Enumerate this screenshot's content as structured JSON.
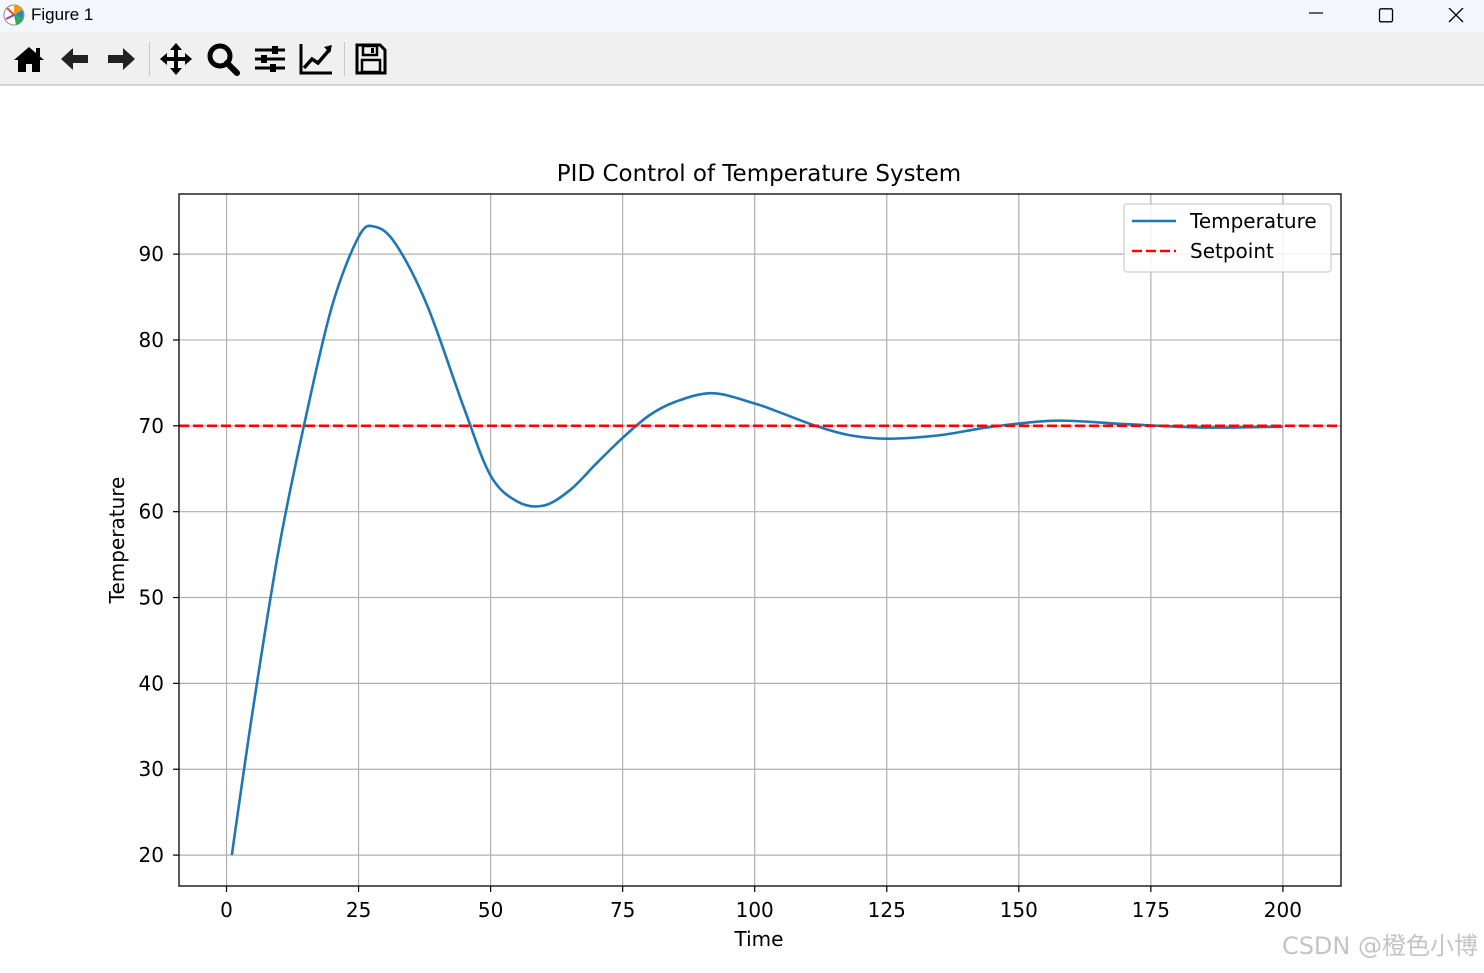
{
  "window": {
    "title": "Figure 1",
    "controls": [
      "minimize",
      "maximize",
      "close"
    ]
  },
  "toolbar": {
    "buttons": [
      {
        "name": "home",
        "icon": "home-icon"
      },
      {
        "name": "back",
        "icon": "arrow-left-icon"
      },
      {
        "name": "forward",
        "icon": "arrow-right-icon"
      },
      {
        "name": "pan",
        "icon": "move-icon"
      },
      {
        "name": "zoom",
        "icon": "magnifier-icon"
      },
      {
        "name": "configure-subplots",
        "icon": "sliders-icon"
      },
      {
        "name": "edit-axis",
        "icon": "chart-edit-icon"
      },
      {
        "name": "save",
        "icon": "floppy-disk-icon"
      }
    ]
  },
  "chart_data": {
    "type": "line",
    "title": "PID Control of Temperature System",
    "xlabel": "Time",
    "ylabel": "Temperature",
    "xlim": [
      -9,
      211
    ],
    "ylim": [
      16.4,
      97
    ],
    "xticks": [
      0,
      25,
      50,
      75,
      100,
      125,
      150,
      175,
      200
    ],
    "yticks": [
      20,
      30,
      40,
      50,
      60,
      70,
      80,
      90
    ],
    "grid": true,
    "legend": {
      "position": "top-right",
      "entries": [
        "Temperature",
        "Setpoint"
      ]
    },
    "series": [
      {
        "name": "Temperature",
        "color": "#1f77b4",
        "style": "solid",
        "x": [
          1,
          5,
          10,
          15,
          20,
          25,
          28,
          32,
          38,
          45,
          50,
          55,
          60,
          65,
          70,
          75,
          80,
          85,
          92,
          100,
          105,
          112,
          118,
          125,
          135,
          145,
          157,
          170,
          185,
          200
        ],
        "y": [
          20,
          37,
          56,
          71,
          84,
          92,
          93.2,
          91.2,
          84,
          72,
          64.2,
          61.2,
          60.7,
          62.5,
          65.6,
          68.6,
          71.2,
          72.8,
          73.8,
          72.6,
          71.5,
          69.9,
          68.9,
          68.5,
          68.9,
          69.9,
          70.6,
          70.2,
          69.8,
          69.9
        ]
      },
      {
        "name": "Setpoint",
        "color": "#ff0000",
        "style": "dashed",
        "x": [
          -9,
          211
        ],
        "y": [
          70,
          70
        ]
      }
    ]
  },
  "watermark": "CSDN @橙色小博"
}
